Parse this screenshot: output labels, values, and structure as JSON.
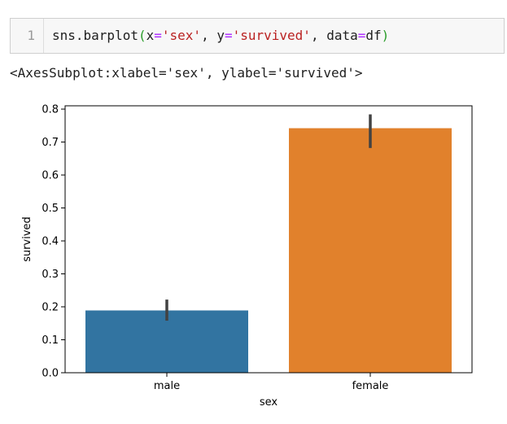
{
  "code_cell": {
    "line_number": "1",
    "tokens": {
      "call": "sns.barplot",
      "open_paren": "(",
      "arg_x": "x",
      "eq1": "=",
      "val_x": "'sex'",
      "sep1": ", ",
      "arg_y": "y",
      "eq2": "=",
      "val_y": "'survived'",
      "sep2": ", ",
      "arg_data": "data",
      "eq3": "=",
      "val_data": "df",
      "close_paren": ")"
    }
  },
  "output": {
    "text": "<AxesSubplot:xlabel='sex', ylabel='survived'>"
  },
  "chart_data": {
    "type": "bar",
    "categories": [
      "male",
      "female"
    ],
    "values": [
      0.189,
      0.742
    ],
    "error_bars": [
      [
        0.158,
        0.222
      ],
      [
        0.682,
        0.784
      ]
    ],
    "colors": [
      "#3274a1",
      "#e1812c"
    ],
    "error_color": "#424242",
    "title": "",
    "xlabel": "sex",
    "ylabel": "survived",
    "ylim": [
      0,
      0.81
    ],
    "yticks": [
      0.0,
      0.1,
      0.2,
      0.3,
      0.4,
      0.5,
      0.6,
      0.7,
      0.8
    ],
    "ytick_labels": [
      "0.0",
      "0.1",
      "0.2",
      "0.3",
      "0.4",
      "0.5",
      "0.6",
      "0.7",
      "0.8"
    ],
    "grid": false,
    "legend": "none"
  }
}
